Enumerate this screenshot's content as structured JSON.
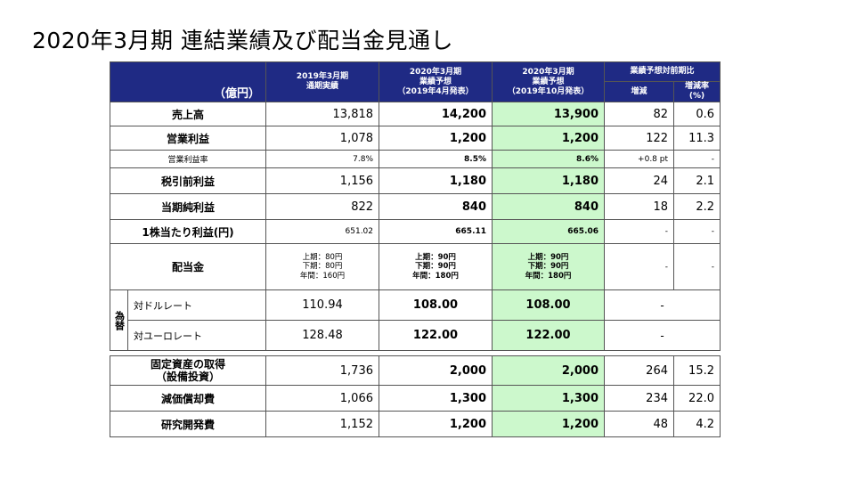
{
  "title": "2020年3月期 連結業績及び配当金見通し",
  "unit_label": "（億円）",
  "header": {
    "col1": [
      "2019年3月期",
      "通期実績"
    ],
    "col2": [
      "2020年3月期",
      "業績予想",
      "（2019年4月発表）"
    ],
    "col3": [
      "2020年3月期",
      "業績予想",
      "（2019年10月発表）"
    ],
    "comparison_group": "業績予想対前期比",
    "col4": "増減",
    "col5": "増減率(%)"
  },
  "rows": [
    {
      "label": "売上高",
      "v1": "13,818",
      "v2": "14,200",
      "v3": "13,900",
      "chg": "82",
      "rate": "0.6"
    },
    {
      "label": "営業利益",
      "v1": "1,078",
      "v2": "1,200",
      "v3": "1,200",
      "chg": "122",
      "rate": "11.3"
    },
    {
      "label": "営業利益率",
      "v1": "7.8%",
      "v2": "8.5%",
      "v3": "8.6%",
      "chg": "+0.8 pt",
      "rate": "-"
    },
    {
      "label": "税引前利益",
      "v1": "1,156",
      "v2": "1,180",
      "v3": "1,180",
      "chg": "24",
      "rate": "2.1"
    },
    {
      "label": "当期純利益",
      "v1": "822",
      "v2": "840",
      "v3": "840",
      "chg": "18",
      "rate": "2.2"
    },
    {
      "label": "1株当たり利益(円)",
      "v1": "651.02",
      "v2": "665.11",
      "v3": "665.06",
      "chg": "-",
      "rate": "-"
    }
  ],
  "dividend": {
    "label": "配当金",
    "v1": [
      "上期：80円",
      "下期：80円",
      "年間：160円"
    ],
    "v2": [
      "上期：90円",
      "下期：90円",
      "年間：180円"
    ],
    "v3": [
      "上期：90円",
      "下期：90円",
      "年間：180円"
    ],
    "chg": "-",
    "rate": "-"
  },
  "fx": {
    "side_label": "為替",
    "rows": [
      {
        "label": "対ドルレート",
        "v1": "110.94",
        "v2": "108.00",
        "v3": "108.00",
        "dash": "-"
      },
      {
        "label": "対ユーロレート",
        "v1": "128.48",
        "v2": "122.00",
        "v3": "122.00",
        "dash": "-"
      }
    ]
  },
  "capex_rows": [
    {
      "label": [
        "固定資産の取得",
        "（設備投資）"
      ],
      "v1": "1,736",
      "v2": "2,000",
      "v3": "2,000",
      "chg": "264",
      "rate": "15.2"
    },
    {
      "label": [
        "減価償却費"
      ],
      "v1": "1,066",
      "v2": "1,300",
      "v3": "1,300",
      "chg": "234",
      "rate": "22.0"
    },
    {
      "label": [
        "研究開発費"
      ],
      "v1": "1,152",
      "v2": "1,200",
      "v3": "1,200",
      "chg": "48",
      "rate": "4.2"
    }
  ],
  "colors": {
    "header_bg": "#1f2a84",
    "highlight_col": "#ccf8cc"
  }
}
